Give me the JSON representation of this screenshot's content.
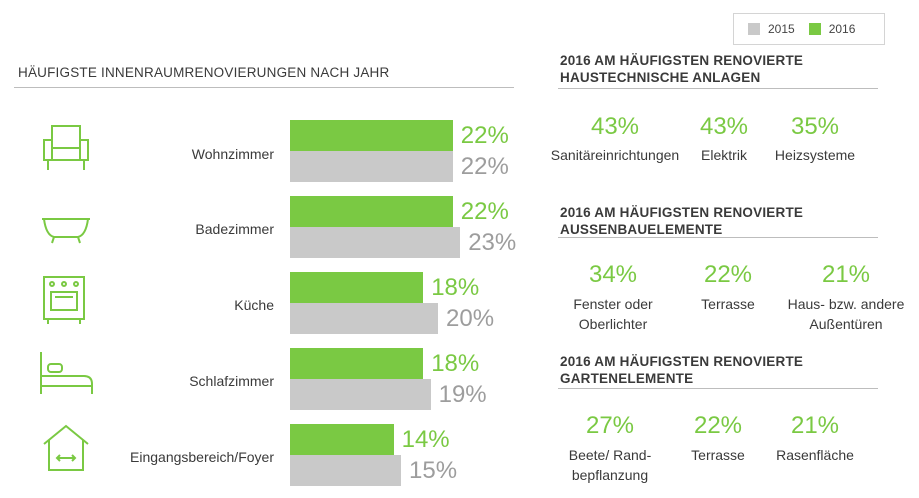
{
  "colors": {
    "y2015": "#c9c9c9",
    "y2016": "#7ac943",
    "text": "#3a3a3a"
  },
  "legend": {
    "y2015": "2015",
    "y2016": "2016"
  },
  "chart_data": {
    "type": "bar",
    "orientation": "horizontal",
    "title": "HÄUFIGSTE INNENRAUMRENOVIERUNGEN NACH JAHR",
    "categories": [
      "Wohnzimmer",
      "Badezimmer",
      "Küche",
      "Schlafzimmer",
      "Eingangsbereich/Foyer"
    ],
    "series": [
      {
        "name": "2016",
        "values": [
          22,
          22,
          18,
          18,
          14
        ],
        "labels": [
          "22%",
          "22%",
          "18%",
          "18%",
          "14%"
        ]
      },
      {
        "name": "2015",
        "values": [
          22,
          23,
          20,
          19,
          15
        ],
        "labels": [
          "22%",
          "23%",
          "20%",
          "19%",
          "15%"
        ]
      }
    ],
    "icons": [
      "armchair-icon",
      "bathtub-icon",
      "oven-icon",
      "bed-icon",
      "house-icon"
    ]
  },
  "sections": [
    {
      "title_line1": "2016 AM HÄUFIGSTEN RENOVIERTE",
      "title_line2": "HAUSTECHNISCHE ANLAGEN",
      "stats": [
        {
          "value": "43%",
          "label1": "Sanitäreinrichtungen",
          "label2": ""
        },
        {
          "value": "43%",
          "label1": "Elektrik",
          "label2": ""
        },
        {
          "value": "35%",
          "label1": "Heizsysteme",
          "label2": ""
        }
      ]
    },
    {
      "title_line1": "2016 AM HÄUFIGSTEN RENOVIERTE",
      "title_line2": "AUSSENBAUELEMENTE",
      "stats": [
        {
          "value": "34%",
          "label1": "Fenster oder",
          "label2": "Oberlichter"
        },
        {
          "value": "22%",
          "label1": "Terrasse",
          "label2": ""
        },
        {
          "value": "21%",
          "label1": "Haus- bzw. andere",
          "label2": "Außentüren"
        }
      ]
    },
    {
      "title_line1": "2016 AM HÄUFIGSTEN RENOVIERTE",
      "title_line2": "GARTENELEMENTE",
      "stats": [
        {
          "value": "27%",
          "label1": "Beete/ Rand-",
          "label2": "bepflanzung"
        },
        {
          "value": "22%",
          "label1": "Terrasse",
          "label2": ""
        },
        {
          "value": "21%",
          "label1": "Rasenfläche",
          "label2": ""
        }
      ]
    }
  ]
}
